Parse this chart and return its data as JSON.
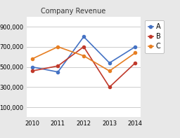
{
  "title": "Company Revenue",
  "years": [
    2010,
    2011,
    2012,
    2013,
    2014
  ],
  "series_order": [
    "A",
    "B",
    "C"
  ],
  "series": {
    "A": [
      500000,
      450000,
      800000,
      540000,
      700000
    ],
    "B": [
      460000,
      510000,
      700000,
      300000,
      540000
    ],
    "C": [
      580000,
      700000,
      610000,
      460000,
      640000
    ]
  },
  "colors": {
    "A": "#4472C4",
    "B": "#C0392B",
    "C": "#E67E22"
  },
  "ylim": [
    0,
    1000000
  ],
  "yticks": [
    100000,
    300000,
    500000,
    700000,
    900000
  ],
  "background_color": "#e8e8e8",
  "plot_bg": "#ffffff",
  "title_fontsize": 7,
  "tick_fontsize": 6,
  "legend_fontsize": 7
}
